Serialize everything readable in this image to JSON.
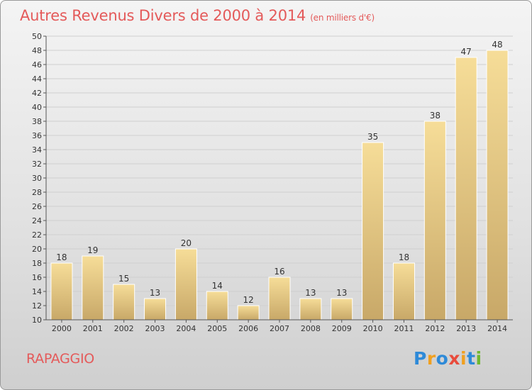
{
  "header": {
    "title": "Autres Revenus Divers de 2000 à 2014",
    "unit": "(en milliers d'€)"
  },
  "footer": {
    "commune": "RAPAGGIO",
    "brand": "Proxiti"
  },
  "colors": {
    "title": "#e45a5a",
    "bar_top": "#f6dd98",
    "bar_bottom": "#c8a868",
    "axis": "#555555",
    "grid": "#cfcfcf"
  },
  "logo_colors": [
    "#2e8ad8",
    "#f0a020",
    "#2e8ad8",
    "#e84b3c",
    "#f0a020",
    "#2e8ad8",
    "#70b830"
  ],
  "chart_data": {
    "type": "bar",
    "title": "Autres Revenus Divers de 2000 à 2014",
    "ylabel": "en milliers d'€",
    "xlabel": "",
    "ylim": [
      10,
      50
    ],
    "yticks": [
      10,
      12,
      14,
      16,
      18,
      20,
      22,
      24,
      26,
      28,
      30,
      32,
      34,
      36,
      38,
      40,
      42,
      44,
      46,
      48,
      50
    ],
    "categories": [
      "2000",
      "2001",
      "2002",
      "2003",
      "2004",
      "2005",
      "2006",
      "2007",
      "2008",
      "2009",
      "2010",
      "2011",
      "2012",
      "2013",
      "2014"
    ],
    "values": [
      18,
      19,
      15,
      13,
      20,
      14,
      12,
      16,
      13,
      13,
      35,
      18,
      38,
      47,
      48
    ]
  }
}
